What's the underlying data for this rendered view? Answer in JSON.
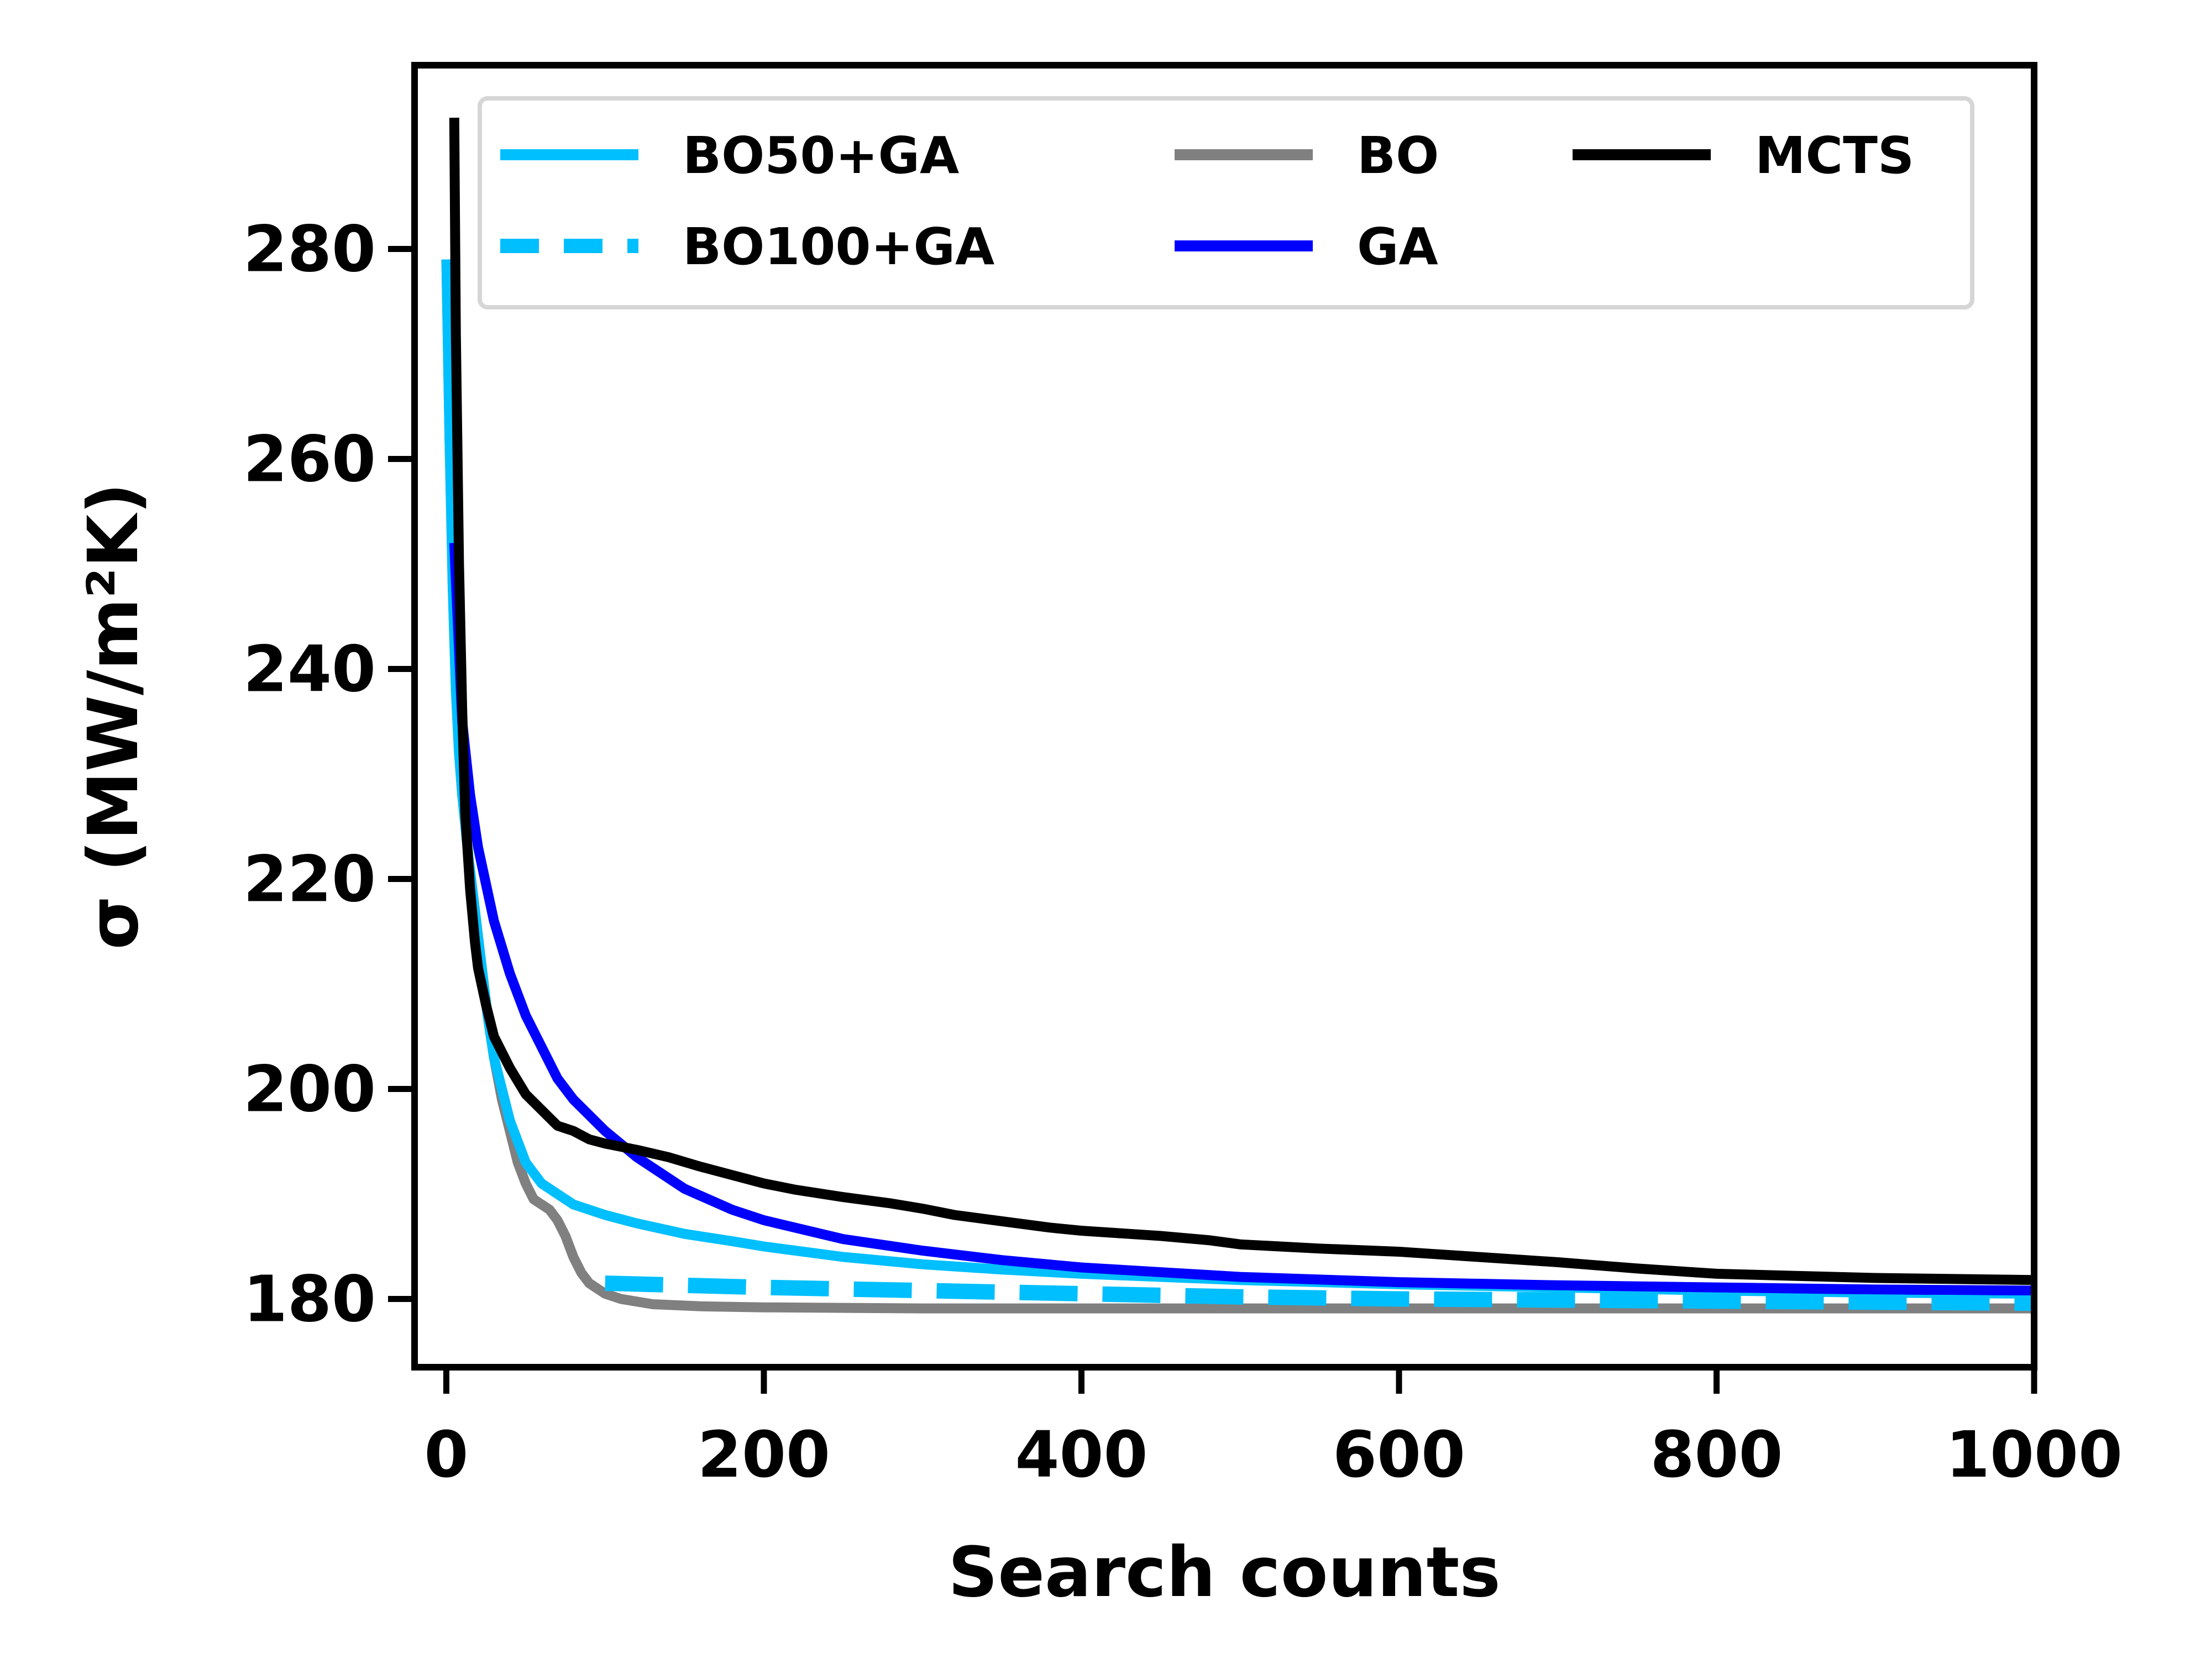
{
  "chart_data": {
    "type": "line",
    "title": "",
    "xlabel": "Search counts",
    "ylabel": "σ (MW/m²K)",
    "xlim": [
      -20,
      1000
    ],
    "ylim": [
      173.5,
      297.5
    ],
    "xticks": [
      0,
      200,
      400,
      600,
      800,
      1000
    ],
    "yticks": [
      180,
      200,
      220,
      240,
      260,
      280
    ],
    "grid": false,
    "legend_position": "top",
    "legend_columns": 3,
    "series": [
      {
        "name": "BO50+GA",
        "color": "#00bfff",
        "style": "solid",
        "x": [
          0,
          2,
          4,
          6,
          8,
          10,
          14,
          18,
          22,
          26,
          30,
          35,
          40,
          45,
          50,
          55,
          60,
          65,
          70,
          80,
          90,
          100,
          120,
          150,
          180,
          200,
          250,
          300,
          350,
          400,
          500,
          600,
          700,
          800,
          900,
          1000
        ],
        "y": [
          279,
          262,
          248,
          238,
          232,
          228,
          222,
          217,
          212,
          207,
          203,
          200,
          197,
          195,
          193,
          192,
          191,
          190.5,
          190,
          189,
          188.5,
          188,
          187.2,
          186.2,
          185.5,
          185,
          184,
          183.3,
          182.8,
          182.4,
          181.8,
          181.4,
          181.1,
          180.8,
          180.6,
          180.5
        ]
      },
      {
        "name": "BO100+GA",
        "color": "#00bfff",
        "style": "dashed",
        "x": [
          100,
          150,
          200,
          300,
          400,
          500,
          600,
          700,
          800,
          900,
          1000
        ],
        "y": [
          181.5,
          181.3,
          181.1,
          180.8,
          180.5,
          180.2,
          180,
          179.9,
          179.8,
          179.7,
          179.6
        ]
      },
      {
        "name": "BO",
        "color": "#808080",
        "style": "solid",
        "x": [
          0,
          2,
          4,
          6,
          8,
          10,
          14,
          18,
          22,
          26,
          30,
          35,
          40,
          45,
          50,
          55,
          60,
          65,
          70,
          75,
          80,
          85,
          90,
          95,
          100,
          110,
          130,
          160,
          200,
          300,
          400,
          600,
          800,
          1000
        ],
        "y": [
          279,
          262,
          248,
          238,
          232,
          228,
          222,
          217,
          212,
          207,
          203,
          199,
          196,
          193,
          191,
          189.5,
          189,
          188.5,
          187.5,
          186,
          184,
          182.5,
          181.5,
          181,
          180.5,
          180,
          179.5,
          179.3,
          179.2,
          179.1,
          179.1,
          179.1,
          179.1,
          179.1
        ]
      },
      {
        "name": "GA",
        "color": "#0000ff",
        "style": "solid",
        "x": [
          5,
          10,
          15,
          20,
          30,
          40,
          50,
          60,
          70,
          80,
          100,
          120,
          150,
          180,
          200,
          250,
          300,
          350,
          400,
          500,
          600,
          700,
          800,
          900,
          1000
        ],
        "y": [
          252,
          235,
          228,
          223,
          216,
          211,
          207,
          204,
          201,
          199,
          196,
          193.5,
          190.5,
          188.5,
          187.5,
          185.7,
          184.6,
          183.7,
          183,
          182.1,
          181.6,
          181.3,
          181.1,
          180.9,
          180.8
        ]
      },
      {
        "name": "MCTS",
        "color": "#000000",
        "style": "solid",
        "x": [
          5,
          6,
          8,
          10,
          12,
          15,
          18,
          20,
          25,
          30,
          40,
          50,
          60,
          70,
          80,
          90,
          100,
          120,
          140,
          160,
          180,
          200,
          220,
          250,
          280,
          300,
          320,
          350,
          380,
          400,
          450,
          480,
          500,
          550,
          600,
          620,
          650,
          700,
          750,
          800,
          850,
          900,
          1000
        ],
        "y": [
          292.5,
          272,
          250,
          236,
          226,
          219,
          214,
          211.5,
          208,
          205,
          202,
          199.5,
          198,
          196.5,
          196,
          195.2,
          194.8,
          194.2,
          193.5,
          192.6,
          191.8,
          191,
          190.4,
          189.7,
          189.1,
          188.6,
          188,
          187.4,
          186.8,
          186.5,
          186,
          185.6,
          185.2,
          184.8,
          184.5,
          184.3,
          184,
          183.5,
          182.9,
          182.4,
          182.2,
          182,
          181.8
        ]
      }
    ]
  }
}
